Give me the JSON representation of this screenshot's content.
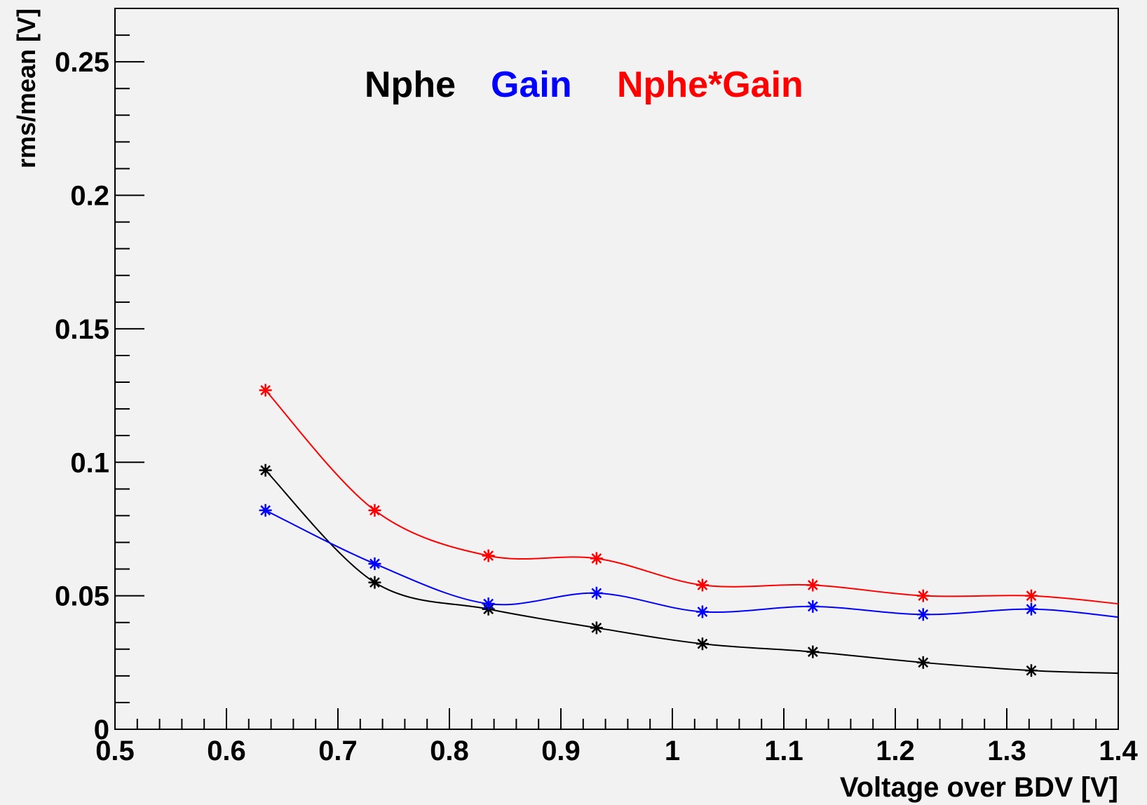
{
  "chart_data": {
    "type": "line",
    "title": "",
    "xlabel": "Voltage over BDV [V]",
    "ylabel": "rms/mean [V]",
    "xlim": [
      0.5,
      1.4
    ],
    "ylim": [
      0,
      0.27
    ],
    "x_ticks": [
      "0.5",
      "0.6",
      "0.7",
      "0.8",
      "0.9",
      "1",
      "1.1",
      "1.2",
      "1.3",
      "1.4"
    ],
    "y_ticks": [
      "0",
      "0.05",
      "0.1",
      "0.15",
      "0.2",
      "0.25"
    ],
    "grid": false,
    "legend": "top-center",
    "series": [
      {
        "name": "Nphe",
        "color": "#000000",
        "marker": "asterisk",
        "x": [
          0.635,
          0.733,
          0.835,
          0.932,
          1.027,
          1.126,
          1.225,
          1.322
        ],
        "y": [
          0.097,
          0.055,
          0.045,
          0.038,
          0.032,
          0.029,
          0.025,
          0.022
        ],
        "extends_to": [
          1.4,
          0.021
        ]
      },
      {
        "name": "Gain",
        "color": "#0000ff",
        "marker": "asterisk",
        "x": [
          0.635,
          0.733,
          0.835,
          0.932,
          1.027,
          1.126,
          1.225,
          1.322
        ],
        "y": [
          0.082,
          0.062,
          0.047,
          0.051,
          0.044,
          0.046,
          0.043,
          0.045
        ],
        "extends_to": [
          1.4,
          0.042
        ]
      },
      {
        "name": "Nphe*Gain",
        "color": "#ff0000",
        "marker": "asterisk",
        "x": [
          0.635,
          0.733,
          0.835,
          0.932,
          1.027,
          1.126,
          1.225,
          1.322
        ],
        "y": [
          0.127,
          0.082,
          0.065,
          0.064,
          0.054,
          0.054,
          0.05,
          0.05
        ],
        "extends_to": [
          1.4,
          0.047
        ]
      }
    ]
  }
}
